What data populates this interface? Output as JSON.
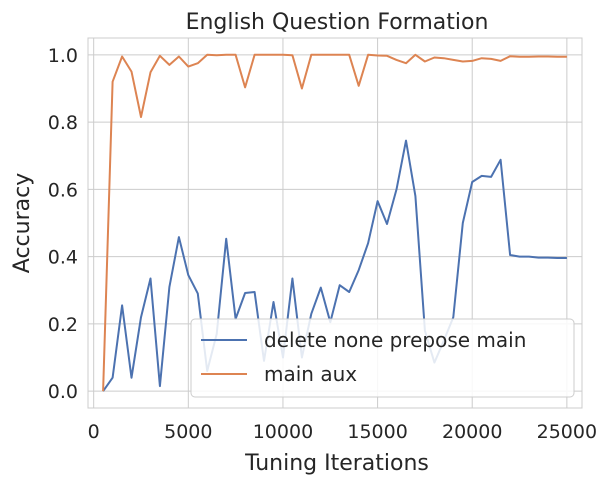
{
  "chart_data": {
    "type": "line",
    "title": "English Question Formation",
    "xlabel": "Tuning Iterations",
    "ylabel": "Accuracy",
    "xlim": [
      -300,
      25800
    ],
    "ylim": [
      -0.05,
      1.05
    ],
    "xticks": [
      0,
      5000,
      10000,
      15000,
      20000,
      25000
    ],
    "yticks": [
      0.0,
      0.2,
      0.4,
      0.6,
      0.8,
      1.0
    ],
    "xtick_labels": [
      "0",
      "5000",
      "10000",
      "15000",
      "20000",
      "25000"
    ],
    "ytick_labels": [
      "0.0",
      "0.2",
      "0.4",
      "0.6",
      "0.8",
      "1.0"
    ],
    "grid": true,
    "legend_position": "lower-right",
    "series": [
      {
        "name": "delete none prepose main",
        "color": "#4c72b0",
        "x": [
          500,
          1000,
          1500,
          2000,
          2500,
          3000,
          3500,
          4000,
          4500,
          5000,
          5500,
          6000,
          6500,
          7000,
          7500,
          8000,
          8500,
          9000,
          9500,
          10000,
          10500,
          11000,
          11500,
          12000,
          12500,
          13000,
          13500,
          14000,
          14500,
          15000,
          15500,
          16000,
          16500,
          17000,
          17500,
          18000,
          18500,
          19000,
          19500,
          20000,
          20500,
          21000,
          21500,
          22000,
          22500,
          23000,
          23500,
          24000,
          24500,
          25000
        ],
        "y": [
          0.0,
          0.04,
          0.255,
          0.04,
          0.22,
          0.335,
          0.015,
          0.31,
          0.458,
          0.345,
          0.29,
          0.06,
          0.17,
          0.453,
          0.215,
          0.292,
          0.295,
          0.09,
          0.265,
          0.1,
          0.335,
          0.1,
          0.23,
          0.308,
          0.205,
          0.315,
          0.295,
          0.36,
          0.44,
          0.565,
          0.497,
          0.6,
          0.745,
          0.58,
          0.18,
          0.085,
          0.15,
          0.22,
          0.5,
          0.622,
          0.64,
          0.637,
          0.688,
          0.405,
          0.4,
          0.4,
          0.397,
          0.397,
          0.396,
          0.396
        ]
      },
      {
        "name": "main aux",
        "color": "#dd8452",
        "x": [
          500,
          1000,
          1500,
          2000,
          2500,
          3000,
          3500,
          4000,
          4500,
          5000,
          5500,
          6000,
          6500,
          7000,
          7500,
          8000,
          8500,
          9000,
          9500,
          10000,
          10500,
          11000,
          11500,
          12000,
          12500,
          13000,
          13500,
          14000,
          14500,
          15000,
          15500,
          16000,
          16500,
          17000,
          17500,
          18000,
          18500,
          19000,
          19500,
          20000,
          20500,
          21000,
          21500,
          22000,
          22500,
          23000,
          23500,
          24000,
          24500,
          25000
        ],
        "y": [
          0.0,
          0.92,
          0.995,
          0.95,
          0.815,
          0.948,
          0.997,
          0.97,
          0.995,
          0.965,
          0.975,
          1.0,
          0.999,
          1.0,
          1.0,
          0.903,
          1.0,
          1.0,
          1.0,
          1.0,
          0.999,
          0.9,
          1.0,
          1.0,
          1.0,
          1.0,
          1.0,
          0.908,
          1.0,
          0.998,
          0.997,
          0.985,
          0.975,
          1.0,
          0.98,
          0.992,
          0.99,
          0.985,
          0.98,
          0.982,
          0.99,
          0.988,
          0.982,
          0.996,
          0.994,
          0.994,
          0.995,
          0.995,
          0.994,
          0.994
        ]
      }
    ]
  }
}
